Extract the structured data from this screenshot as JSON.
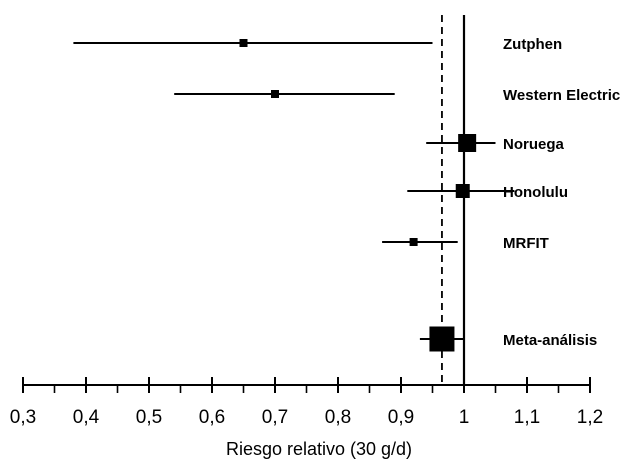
{
  "chart_data": {
    "type": "forest",
    "xlabel": "Riesgo relativo (30 g/d)",
    "xlim": [
      0.3,
      1.2
    ],
    "x_ticks": [
      0.3,
      0.4,
      0.5,
      0.6,
      0.7,
      0.8,
      0.9,
      1.0,
      1.1,
      1.2
    ],
    "x_tick_labels": [
      "0,3",
      "0,4",
      "0,5",
      "0,6",
      "0,7",
      "0,8",
      "0,9",
      "1",
      "1,1",
      "1,2"
    ],
    "minor_tick_step": 0.05,
    "reference_line": 1.0,
    "pooled_line": 0.965,
    "studies": [
      {
        "label": "Zutphen",
        "estimate": 0.65,
        "ci_low": 0.38,
        "ci_high": 0.95,
        "weight": "small"
      },
      {
        "label": "Western Electric",
        "estimate": 0.7,
        "ci_low": 0.54,
        "ci_high": 0.89,
        "weight": "small"
      },
      {
        "label": "Noruega",
        "estimate": 1.005,
        "ci_low": 0.94,
        "ci_high": 1.05,
        "weight": "large"
      },
      {
        "label": "Honolulu",
        "estimate": 0.998,
        "ci_low": 0.91,
        "ci_high": 1.08,
        "weight": "medium"
      },
      {
        "label": "MRFIT",
        "estimate": 0.92,
        "ci_low": 0.87,
        "ci_high": 0.99,
        "weight": "small"
      },
      {
        "label": "Meta-análisis",
        "estimate": 0.965,
        "ci_low": 0.93,
        "ci_high": 1.0,
        "weight": "pooled"
      }
    ],
    "colors": {
      "ink": "#000000",
      "background": "#ffffff"
    }
  }
}
